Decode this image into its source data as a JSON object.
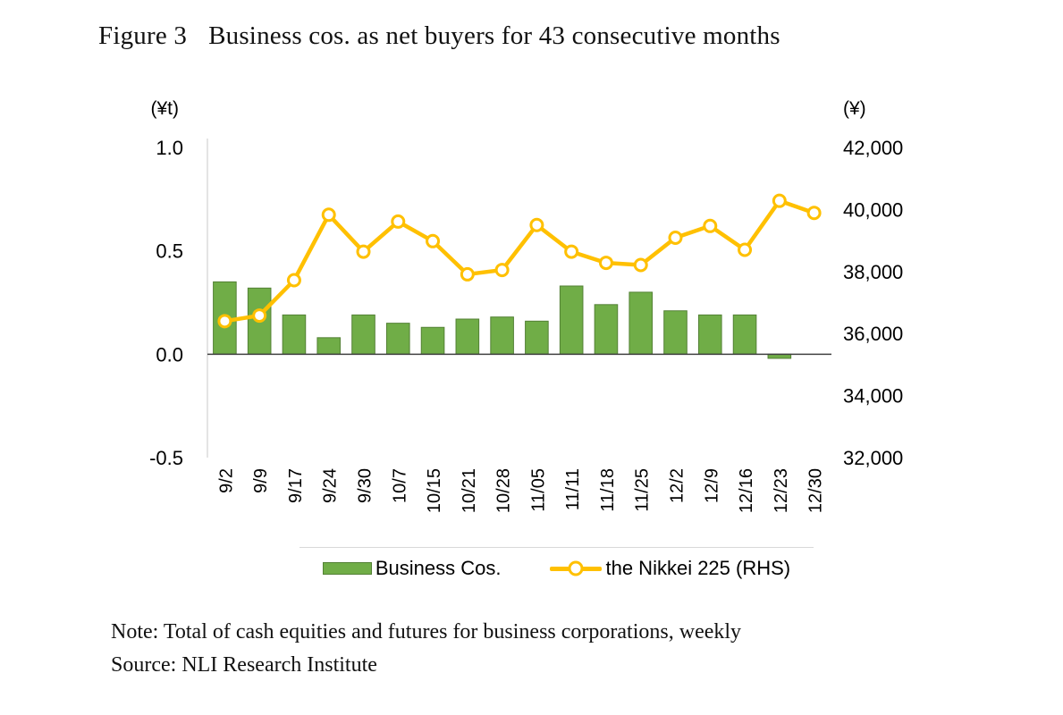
{
  "figure": {
    "label": "Figure 3",
    "title": "Business cos. as net buyers for 43 consecutive months"
  },
  "chart_data": {
    "type": "bar-line-combo",
    "categories": [
      "9/2",
      "9/9",
      "9/17",
      "9/24",
      "9/30",
      "10/7",
      "10/15",
      "10/21",
      "10/28",
      "11/05",
      "11/11",
      "11/18",
      "11/25",
      "12/2",
      "12/9",
      "12/16",
      "12/23",
      "12/30"
    ],
    "series": [
      {
        "name": "Business Cos.",
        "type": "bar",
        "axis": "left",
        "color": "#70ad47",
        "border": "#538135",
        "values": [
          0.35,
          0.32,
          0.19,
          0.08,
          0.19,
          0.15,
          0.13,
          0.17,
          0.18,
          0.16,
          0.33,
          0.24,
          0.3,
          0.21,
          0.19,
          0.19,
          -0.02,
          0.0
        ]
      },
      {
        "name": "the Nikkei 225 (RHS)",
        "type": "line",
        "axis": "right",
        "color": "#ffc000",
        "marker_fill": "#ffffff",
        "values": [
          36400,
          36580,
          37720,
          39830,
          38640,
          39610,
          38980,
          37910,
          38050,
          39500,
          38640,
          38280,
          38210,
          39090,
          39470,
          38700,
          40280,
          39890
        ]
      }
    ],
    "left_axis": {
      "unit": "(¥t)",
      "range": [
        -0.5,
        1.0
      ],
      "ticks": [
        {
          "label": "1.0",
          "value": 1.0
        },
        {
          "label": "0.5",
          "value": 0.5
        },
        {
          "label": "0.0",
          "value": 0.0
        },
        {
          "label": "-0.5",
          "value": -0.5
        }
      ]
    },
    "right_axis": {
      "unit": "(¥)",
      "range": [
        32000,
        42000
      ],
      "ticks": [
        {
          "label": "42,000",
          "value": 42000
        },
        {
          "label": "40,000",
          "value": 40000
        },
        {
          "label": "38,000",
          "value": 38000
        },
        {
          "label": "36,000",
          "value": 36000
        },
        {
          "label": "34,000",
          "value": 34000
        },
        {
          "label": "32,000",
          "value": 32000
        }
      ]
    },
    "legend_position": "bottom",
    "grid": false
  },
  "note": "Note: Total of cash equities and futures for business corporations, weekly",
  "source": "Source: NLI Research Institute"
}
